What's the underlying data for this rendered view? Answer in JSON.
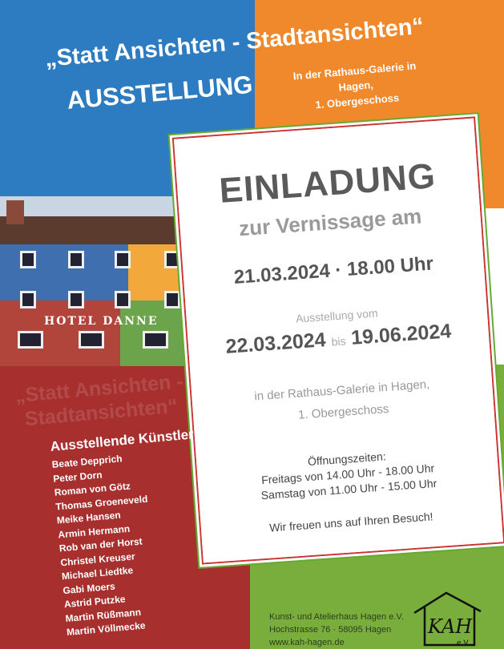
{
  "header": {
    "title_line1": "„Statt Ansichten - Stadtansichten“",
    "title_line2": "AUSSTELLUNG",
    "location": [
      "In der Rathaus-Galerie in Hagen,",
      "1. Obergeschoss"
    ]
  },
  "photo": {
    "sign": "HOTEL DANNE"
  },
  "invitation": {
    "heading": "EINLADUNG",
    "subheading": "zur Vernissage am",
    "vernissage": "21.03.2024 · 18.00 Uhr",
    "exhibition_label": "Ausstellung vom",
    "from": "22.03.2024",
    "bis": "bis",
    "to": "19.06.2024",
    "location": [
      "in der Rathaus-Galerie in Hagen,",
      "1. Obergeschoss"
    ],
    "hours_label": "Öffnungszeiten:",
    "hours": [
      "Freitags von 14.00 Uhr - 18.00 Uhr",
      "Samstag von 11.00 Uhr - 15.00 Uhr"
    ],
    "closing": "Wir freuen uns auf Ihren Besuch!"
  },
  "ghost_title": [
    "„Statt Ansichten -",
    "Stadtansichten“"
  ],
  "artists": {
    "heading": "Ausstellende Künstler:",
    "names": [
      "Beate Depprich",
      "Peter Dorn",
      "Roman von Götz",
      "Thomas Groeneveld",
      "Meike Hansen",
      "Armin Hermann",
      "Rob van der Horst",
      "Christel Kreuser",
      "Michael Liedtke",
      "Gabi Moers",
      "Astrid Putzke",
      "Martin Rüßmann",
      "Martin Völlmecke"
    ]
  },
  "footer": {
    "org": "Kunst- und Atelierhaus Hagen e.V.",
    "address": "Hochstrasse 76 · 58095  Hagen",
    "web": "www.kah-hagen.de",
    "logo_text": "KAH e.V."
  },
  "colors": {
    "blue": "#2d7cc1",
    "orange": "#f0892c",
    "red": "#a7302f",
    "green": "#79ae3c"
  }
}
